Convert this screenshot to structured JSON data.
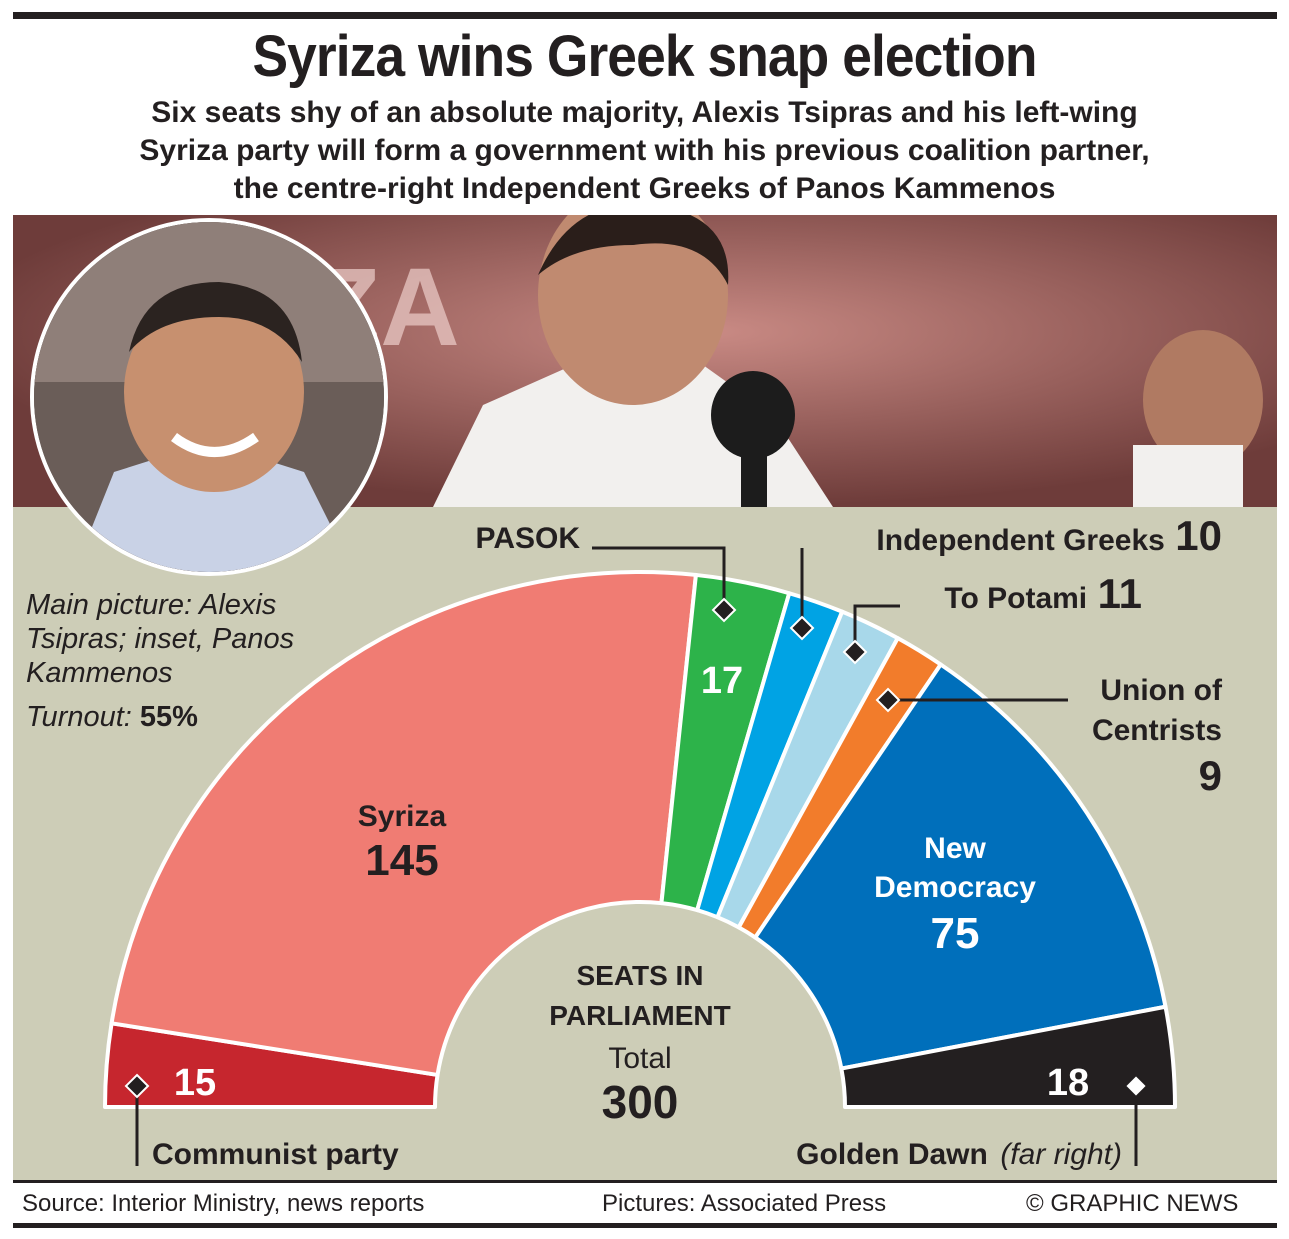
{
  "header": {
    "title": "Syriza wins Greek snap election",
    "subtitle_lines": [
      "Six seats shy of an absolute majority, Alexis Tsipras and his left-wing",
      "Syriza party will form a government with his previous coalition partner,",
      "the centre-right Independent Greeks of Panos Kammenos"
    ]
  },
  "photo": {
    "caption": "Main picture: Alexis Tsipras; inset, Panos Kammenos",
    "caption_lines": [
      "Main picture: Alexis",
      "Tsipras; inset, Panos",
      "Kammenos"
    ],
    "turnout_label": "Turnout:",
    "turnout_value": "55%",
    "backdrop_text": "ZA"
  },
  "chart_data": {
    "type": "pie",
    "title": "SEATS IN PARLIAMENT",
    "title_lines": [
      "SEATS IN",
      "PARLIAMENT"
    ],
    "total_label": "Total",
    "total_value": 300,
    "total_text": "300",
    "categories": [
      "Communist party",
      "Syriza",
      "PASOK",
      "Independent Greeks",
      "To Potami",
      "Union of Centrists",
      "New Democracy",
      "Golden Dawn"
    ],
    "values": [
      15,
      145,
      17,
      10,
      11,
      9,
      75,
      18
    ],
    "colors": [
      "#c6262e",
      "#f07c73",
      "#2db34a",
      "#00a3e4",
      "#a8d8ea",
      "#f27c2b",
      "#006fbb",
      "#231f20"
    ],
    "slice_labels": {
      "communist": "15",
      "syriza_name": "Syriza",
      "syriza_value": "145",
      "pasok": "17",
      "nd_name_lines": [
        "New",
        "Democracy"
      ],
      "nd_value": "75",
      "golden_dawn": "18"
    },
    "callouts": {
      "pasok": "PASOK",
      "independent_greeks_name": "Independent Greeks",
      "independent_greeks_value": "10",
      "to_potami_name": "To Potami",
      "to_potami_value": "11",
      "union_lines": [
        "Union of",
        "Centrists"
      ],
      "union_value": "9",
      "communist": "Communist party",
      "golden_dawn_name": "Golden Dawn",
      "golden_dawn_note": "(far right)"
    }
  },
  "footer": {
    "source": "Source: Interior Ministry, news reports",
    "pictures": "Pictures: Associated Press",
    "credit": "© GRAPHIC NEWS"
  }
}
